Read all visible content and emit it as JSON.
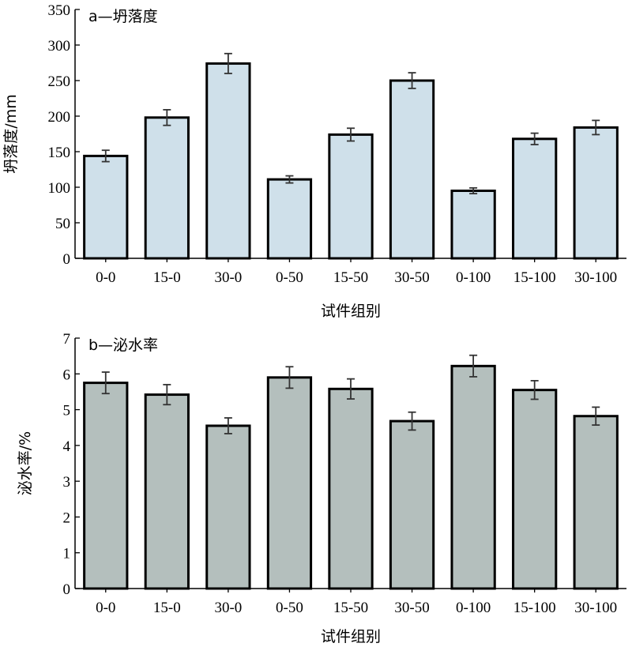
{
  "chart_data": [
    {
      "type": "bar",
      "title": "a—坍落度",
      "xlabel": "试件组别",
      "ylabel": "坍落度/mm",
      "ylim": [
        0,
        350
      ],
      "yticks": [
        0,
        50,
        100,
        150,
        200,
        250,
        300,
        350
      ],
      "categories": [
        "0-0",
        "15-0",
        "30-0",
        "0-50",
        "15-50",
        "30-50",
        "0-100",
        "15-100",
        "30-100"
      ],
      "values": [
        144,
        198,
        274,
        111,
        174,
        250,
        95,
        168,
        184
      ],
      "errors": [
        8,
        11,
        14,
        5,
        9,
        11,
        4,
        8,
        10
      ],
      "bar_color": "#cfe0ea",
      "grid": false
    },
    {
      "type": "bar",
      "title": "b—泌水率",
      "xlabel": "试件组别",
      "ylabel": "泌水率/%",
      "ylim": [
        0,
        7
      ],
      "yticks": [
        0,
        1,
        2,
        3,
        4,
        5,
        6,
        7
      ],
      "categories": [
        "0-0",
        "15-0",
        "30-0",
        "0-50",
        "15-50",
        "30-50",
        "0-100",
        "15-100",
        "30-100"
      ],
      "values": [
        5.75,
        5.42,
        4.55,
        5.9,
        5.58,
        4.68,
        6.22,
        5.55,
        4.82
      ],
      "errors": [
        0.3,
        0.28,
        0.22,
        0.3,
        0.28,
        0.25,
        0.3,
        0.26,
        0.25
      ],
      "bar_color": "#b4bfbd",
      "grid": false
    }
  ]
}
